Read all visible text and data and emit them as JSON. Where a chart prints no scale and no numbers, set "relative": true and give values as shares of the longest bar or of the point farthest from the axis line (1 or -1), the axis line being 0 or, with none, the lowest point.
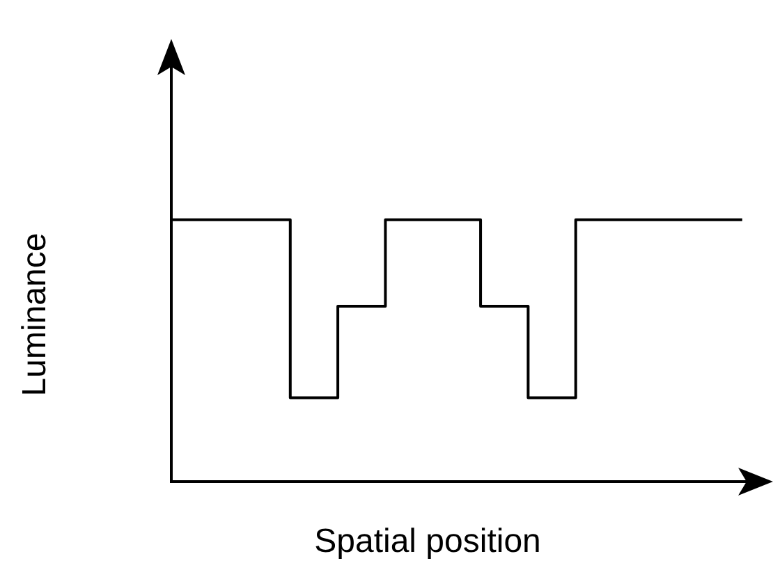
{
  "chart_data": {
    "type": "step",
    "relative": true,
    "tick_labels": false,
    "xlabel": "Spatial position",
    "ylabel": "Luminance",
    "color": "#000000",
    "categories": [
      null,
      null,
      null,
      null,
      null,
      null,
      null,
      null,
      null,
      null,
      null,
      null,
      null
    ],
    "values": [
      1,
      1,
      1,
      0.32,
      0.67,
      1,
      1,
      0.67,
      0.32,
      1,
      1,
      1,
      1
    ]
  }
}
